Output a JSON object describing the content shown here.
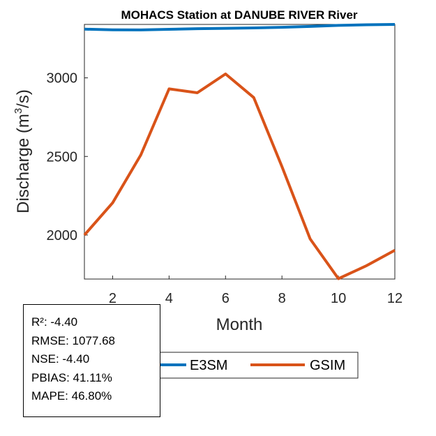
{
  "chart_data": {
    "type": "line",
    "title": "MOHACS  Station at  DANUBE RIVER  River",
    "xlabel": "Month",
    "ylabel_main": "Discharge (m",
    "ylabel_sup": "3",
    "ylabel_tail": "/s)",
    "x": [
      1,
      2,
      3,
      4,
      5,
      6,
      7,
      8,
      9,
      10,
      11,
      12
    ],
    "xlim": [
      1,
      12
    ],
    "ylim": [
      1720,
      3340
    ],
    "xticks": [
      "2",
      "4",
      "6",
      "8",
      "10",
      "12"
    ],
    "yticks": [
      "2000",
      "2500",
      "3000"
    ],
    "grid": false,
    "series": [
      {
        "name": "E3SM",
        "color": "#0072BD",
        "values": [
          3310,
          3306,
          3305,
          3309,
          3313,
          3315,
          3318,
          3322,
          3327,
          3334,
          3338,
          3340
        ]
      },
      {
        "name": "GSIM",
        "color": "#D95319",
        "values": [
          2000,
          2205,
          2510,
          2930,
          2905,
          3025,
          2875,
          2435,
          1975,
          1722,
          1805,
          1903
        ]
      }
    ],
    "legend_position": "bottom"
  },
  "stats": [
    "R²: -4.40",
    "RMSE: 1077.68",
    "NSE: -4.40",
    "PBIAS: 41.11%",
    "MAPE: 46.80%"
  ]
}
